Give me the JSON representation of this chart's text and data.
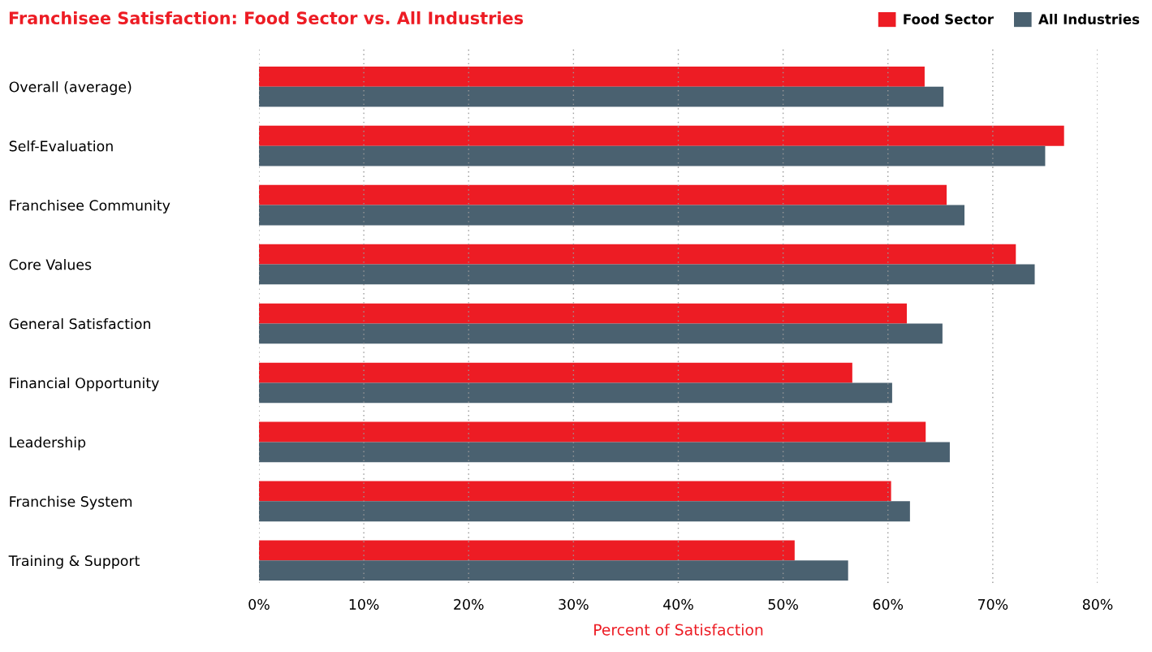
{
  "chart_data": {
    "type": "bar",
    "orientation": "horizontal",
    "title": "Franchisee Satisfaction: Food Sector vs. All Industries",
    "xlabel": "Percent of Satisfaction",
    "categories": [
      "Overall (average)",
      "Self-Evaluation",
      "Franchisee Community",
      "Core Values",
      "General Satisfaction",
      "Financial Opportunity",
      "Leadership",
      "Franchise System",
      "Training & Support"
    ],
    "series": [
      {
        "name": "Food Sector",
        "color": "#ed1c24",
        "values": [
          63.5,
          76.8,
          65.6,
          72.2,
          61.8,
          56.6,
          63.6,
          60.3,
          51.1
        ]
      },
      {
        "name": "All Industries",
        "color": "#4a6170",
        "values": [
          65.3,
          75.0,
          67.3,
          74.0,
          65.2,
          60.4,
          65.9,
          62.1,
          56.2
        ]
      }
    ],
    "xlim": [
      0,
      80
    ],
    "xticks": [
      {
        "value": 0,
        "label": "0%"
      },
      {
        "value": 10,
        "label": "10%"
      },
      {
        "value": 20,
        "label": "20%"
      },
      {
        "value": 30,
        "label": "30%"
      },
      {
        "value": 40,
        "label": "40%"
      },
      {
        "value": 50,
        "label": "50%"
      },
      {
        "value": 60,
        "label": "60%"
      },
      {
        "value": 70,
        "label": "70%"
      },
      {
        "value": 80,
        "label": "80%"
      }
    ],
    "grid": "x",
    "legend": "top right"
  }
}
